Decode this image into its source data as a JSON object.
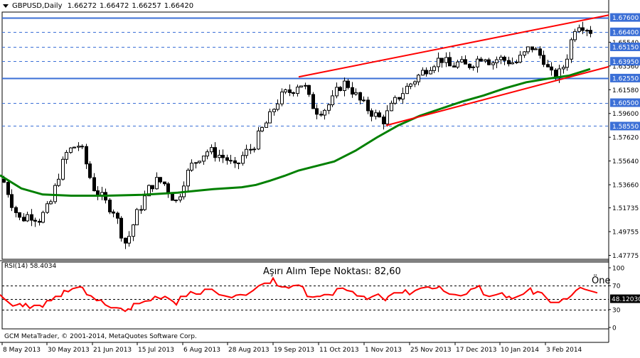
{
  "header": {
    "symbol_timeframe": "GBPUSD,Daily",
    "open": "1.66272",
    "high": "1.66472",
    "low": "1.66257",
    "close": "1.66420"
  },
  "rsi_panel": {
    "label": "RSI(14) 58.4034",
    "annotation": "Aşırı Alım Tepe Noktası: 82,60",
    "annotation_right": "Öne",
    "current_value_label": "48.12030"
  },
  "footer": {
    "copyright": "GCM MetaTrader, © 2001-2014, MetaQuotes Software Corp."
  },
  "colors": {
    "candle": "#000000",
    "ma": "#008000",
    "trendline": "#ff0000",
    "rsi_line": "#ff0000",
    "hline_solid": "#3b6fd6",
    "hline_dashed": "#3b6fd6",
    "label_bg": "#3b6fd6",
    "label_fg": "#ffffff"
  },
  "chart_data": [
    {
      "type": "candlestick",
      "title": "GBPUSD,Daily",
      "ohlc_last": {
        "open": 1.66272,
        "high": 1.66472,
        "low": 1.66257,
        "close": 1.6642
      },
      "ylim": [
        1.4745,
        1.6805
      ],
      "y_ticks": [
        "1.67600",
        "1.66400",
        "1.65540",
        "1.65150",
        "1.63950",
        "1.63560",
        "1.62550",
        "1.61580",
        "1.60500",
        "1.59600",
        "1.58550",
        "1.57620",
        "1.55640",
        "1.53660",
        "1.51735",
        "1.49755",
        "1.47775"
      ],
      "x_ticks": [
        "8 May 2013",
        "30 May 2013",
        "21 Jun 2013",
        "15 Jul 2013",
        "6 Aug 2013",
        "28 Aug 2013",
        "19 Sep 2013",
        "11 Oct 2013",
        "1 Nov 2013",
        "25 Nov 2013",
        "17 Dec 2013",
        "10 Jan 2014",
        "3 Feb 2014"
      ],
      "close_path_approx": [
        [
          0,
          1.545
        ],
        [
          8,
          1.535
        ],
        [
          18,
          1.518
        ],
        [
          28,
          1.507
        ],
        [
          40,
          1.512
        ],
        [
          55,
          1.508
        ],
        [
          70,
          1.52
        ],
        [
          82,
          1.545
        ],
        [
          92,
          1.562
        ],
        [
          102,
          1.568
        ],
        [
          112,
          1.57
        ],
        [
          120,
          1.555
        ],
        [
          130,
          1.535
        ],
        [
          140,
          1.528
        ],
        [
          150,
          1.52
        ],
        [
          160,
          1.515
        ],
        [
          168,
          1.5
        ],
        [
          175,
          1.488
        ],
        [
          182,
          1.495
        ],
        [
          190,
          1.51
        ],
        [
          200,
          1.522
        ],
        [
          210,
          1.535
        ],
        [
          220,
          1.54
        ],
        [
          230,
          1.538
        ],
        [
          240,
          1.528
        ],
        [
          248,
          1.522
        ],
        [
          258,
          1.54
        ],
        [
          268,
          1.552
        ],
        [
          280,
          1.56
        ],
        [
          292,
          1.565
        ],
        [
          305,
          1.562
        ],
        [
          318,
          1.558
        ],
        [
          330,
          1.55
        ],
        [
          342,
          1.562
        ],
        [
          355,
          1.568
        ],
        [
          365,
          1.58
        ],
        [
          378,
          1.592
        ],
        [
          388,
          1.605
        ],
        [
          398,
          1.612
        ],
        [
          410,
          1.615
        ],
        [
          420,
          1.622
        ],
        [
          428,
          1.618
        ],
        [
          436,
          1.605
        ],
        [
          446,
          1.598
        ],
        [
          456,
          1.6
        ],
        [
          466,
          1.606
        ],
        [
          476,
          1.618
        ],
        [
          486,
          1.622
        ],
        [
          496,
          1.614
        ],
        [
          506,
          1.606
        ],
        [
          516,
          1.6
        ],
        [
          526,
          1.595
        ],
        [
          538,
          1.59
        ],
        [
          548,
          1.6
        ],
        [
          560,
          1.61
        ],
        [
          572,
          1.618
        ],
        [
          584,
          1.625
        ],
        [
          596,
          1.632
        ],
        [
          608,
          1.638
        ],
        [
          620,
          1.642
        ],
        [
          632,
          1.635
        ],
        [
          644,
          1.638
        ],
        [
          656,
          1.635
        ],
        [
          668,
          1.64
        ],
        [
          680,
          1.645
        ],
        [
          690,
          1.638
        ],
        [
          700,
          1.642
        ],
        [
          712,
          1.64
        ],
        [
          724,
          1.638
        ],
        [
          736,
          1.645
        ],
        [
          746,
          1.652
        ],
        [
          756,
          1.646
        ],
        [
          766,
          1.64
        ],
        [
          772,
          1.628
        ],
        [
          780,
          1.628
        ],
        [
          788,
          1.63
        ],
        [
          796,
          1.642
        ],
        [
          804,
          1.66
        ],
        [
          810,
          1.672
        ],
        [
          818,
          1.67
        ],
        [
          826,
          1.667
        ],
        [
          832,
          1.664
        ]
      ],
      "ma_points": [
        [
          0,
          1.5445
        ],
        [
          30,
          1.5335
        ],
        [
          60,
          1.5285
        ],
        [
          100,
          1.5275
        ],
        [
          150,
          1.5275
        ],
        [
          200,
          1.5282
        ],
        [
          250,
          1.53
        ],
        [
          300,
          1.533
        ],
        [
          340,
          1.5345
        ],
        [
          360,
          1.5365
        ],
        [
          380,
          1.54
        ],
        [
          400,
          1.544
        ],
        [
          420,
          1.5485
        ],
        [
          440,
          1.5515
        ],
        [
          470,
          1.556
        ],
        [
          500,
          1.565
        ],
        [
          530,
          1.576
        ],
        [
          560,
          1.586
        ],
        [
          590,
          1.594
        ],
        [
          620,
          1.6
        ],
        [
          650,
          1.606
        ],
        [
          680,
          1.611
        ],
        [
          710,
          1.617
        ],
        [
          740,
          1.622
        ],
        [
          770,
          1.625
        ],
        [
          800,
          1.6275
        ],
        [
          830,
          1.633
        ]
      ],
      "trendlines": [
        {
          "from": [
            420,
            1.6265
          ],
          "to": [
            856,
            1.678
          ]
        },
        {
          "from": [
            543,
            1.586
          ],
          "to": [
            856,
            1.635
          ]
        }
      ],
      "horizontal_levels": [
        {
          "value": 1.676,
          "style": "solid",
          "label": "1.67600"
        },
        {
          "value": 1.664,
          "style": "dashed",
          "label": "1.66400"
        },
        {
          "value": 1.6515,
          "style": "dashed",
          "label": "1.65150"
        },
        {
          "value": 1.6395,
          "style": "dashed",
          "label": "1.63950"
        },
        {
          "value": 1.6255,
          "style": "solid",
          "label": "1.62550"
        },
        {
          "value": 1.605,
          "style": "dashed",
          "label": "1.60500"
        },
        {
          "value": 1.5855,
          "style": "dashed",
          "label": "1.58550"
        }
      ]
    },
    {
      "type": "line",
      "title": "RSI(14) 58.4034",
      "ylim": [
        0,
        100
      ],
      "y_ticks": [
        "100",
        "70",
        "30",
        "0"
      ],
      "levels": [
        70,
        48.1203,
        30
      ],
      "annotation": "Aşırı Alım Tepe Noktası: 82,60",
      "values_approx": [
        [
          0,
          55
        ],
        [
          6,
          48
        ],
        [
          12,
          42
        ],
        [
          18,
          36
        ],
        [
          24,
          38
        ],
        [
          28,
          40
        ],
        [
          32,
          35
        ],
        [
          36,
          40
        ],
        [
          42,
          32
        ],
        [
          48,
          37
        ],
        [
          56,
          37
        ],
        [
          60,
          34
        ],
        [
          66,
          45
        ],
        [
          72,
          45
        ],
        [
          78,
          52
        ],
        [
          86,
          52
        ],
        [
          90,
          62
        ],
        [
          96,
          60
        ],
        [
          102,
          65
        ],
        [
          112,
          68
        ],
        [
          116,
          67
        ],
        [
          122,
          55
        ],
        [
          128,
          53
        ],
        [
          136,
          45
        ],
        [
          142,
          46
        ],
        [
          148,
          38
        ],
        [
          156,
          33
        ],
        [
          164,
          33
        ],
        [
          170,
          32
        ],
        [
          176,
          27
        ],
        [
          180,
          31
        ],
        [
          184,
          30
        ],
        [
          188,
          40
        ],
        [
          196,
          40
        ],
        [
          204,
          44
        ],
        [
          212,
          45
        ],
        [
          218,
          52
        ],
        [
          226,
          48
        ],
        [
          232,
          52
        ],
        [
          238,
          48
        ],
        [
          244,
          43
        ],
        [
          248,
          38
        ],
        [
          254,
          52
        ],
        [
          262,
          52
        ],
        [
          268,
          60
        ],
        [
          276,
          56
        ],
        [
          282,
          56
        ],
        [
          288,
          64
        ],
        [
          298,
          64
        ],
        [
          308,
          55
        ],
        [
          316,
          53
        ],
        [
          326,
          50
        ],
        [
          332,
          54
        ],
        [
          338,
          55
        ],
        [
          346,
          54
        ],
        [
          356,
          62
        ],
        [
          364,
          70
        ],
        [
          372,
          74
        ],
        [
          380,
          74
        ],
        [
          384,
          82.6
        ],
        [
          390,
          70
        ],
        [
          396,
          68
        ],
        [
          402,
          68
        ],
        [
          406,
          66
        ],
        [
          412,
          70
        ],
        [
          420,
          71
        ],
        [
          426,
          68
        ],
        [
          432,
          52
        ],
        [
          440,
          51
        ],
        [
          446,
          52
        ],
        [
          450,
          52
        ],
        [
          456,
          55
        ],
        [
          462,
          55
        ],
        [
          468,
          54
        ],
        [
          474,
          65
        ],
        [
          482,
          66
        ],
        [
          488,
          62
        ],
        [
          496,
          60
        ],
        [
          502,
          53
        ],
        [
          512,
          52
        ],
        [
          516,
          47
        ],
        [
          524,
          52
        ],
        [
          532,
          56
        ],
        [
          538,
          49
        ],
        [
          542,
          45
        ],
        [
          546,
          52
        ],
        [
          554,
          58
        ],
        [
          566,
          58
        ],
        [
          570,
          63
        ],
        [
          576,
          55
        ],
        [
          584,
          62
        ],
        [
          592,
          66
        ],
        [
          602,
          68
        ],
        [
          608,
          65
        ],
        [
          614,
          66
        ],
        [
          618,
          69
        ],
        [
          624,
          61
        ],
        [
          632,
          56
        ],
        [
          640,
          55
        ],
        [
          648,
          53
        ],
        [
          656,
          56
        ],
        [
          662,
          64
        ],
        [
          668,
          66
        ],
        [
          674,
          70
        ],
        [
          680,
          55
        ],
        [
          688,
          52
        ],
        [
          698,
          55
        ],
        [
          706,
          58
        ],
        [
          712,
          50
        ],
        [
          716,
          52
        ],
        [
          720,
          48
        ],
        [
          728,
          52
        ],
        [
          736,
          56
        ],
        [
          742,
          62
        ],
        [
          746,
          66
        ],
        [
          750,
          56
        ],
        [
          756,
          60
        ],
        [
          762,
          58
        ],
        [
          768,
          50
        ],
        [
          774,
          42
        ],
        [
          786,
          42
        ],
        [
          792,
          48
        ],
        [
          798,
          48
        ],
        [
          804,
          54
        ],
        [
          810,
          62
        ],
        [
          816,
          67
        ],
        [
          822,
          64
        ],
        [
          828,
          62
        ],
        [
          834,
          60
        ],
        [
          840,
          58
        ]
      ]
    }
  ]
}
